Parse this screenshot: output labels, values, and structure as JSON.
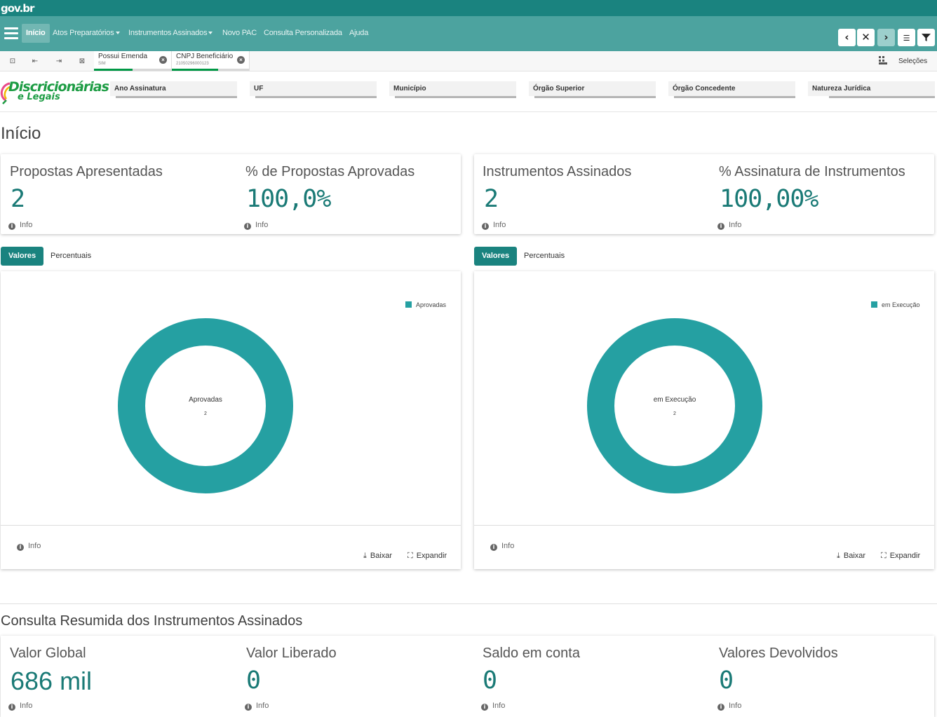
{
  "header": {
    "gov_logo": "gov.br"
  },
  "nav": {
    "items": [
      {
        "label": "Início",
        "active": true
      },
      {
        "label": "Atos Preparatórios",
        "dropdown": true
      },
      {
        "label": "Instrumentos Assinados",
        "dropdown": true
      },
      {
        "label": "Novo PAC"
      },
      {
        "label": "Consulta Personalizada"
      },
      {
        "label": "Ajuda"
      }
    ],
    "buttons": [
      "chevron-left-icon",
      "close-icon",
      "chevron-right-icon",
      "toggle-icon",
      "filter-icon"
    ]
  },
  "selections": {
    "chips": [
      {
        "title": "Possui Emenda",
        "value": "SIM"
      },
      {
        "title": "CNPJ Beneficiário",
        "value": "21050296000123"
      }
    ],
    "label": "Seleções"
  },
  "brand": {
    "line1": "Discricionárias",
    "line2": "e Legais"
  },
  "filters": [
    "Ano Assinatura",
    "UF",
    "Município",
    "Órgão Superior",
    "Órgão Concedente",
    "Natureza Jurídica"
  ],
  "page_title": "Início",
  "kpis_left": [
    {
      "label": "Propostas Apresentadas",
      "value": "2",
      "info": "Info"
    },
    {
      "label": "% de Propostas Aprovadas",
      "value": "100,0%",
      "info": "Info"
    }
  ],
  "kpis_right": [
    {
      "label": "Instrumentos Assinados",
      "value": "2",
      "info": "Info"
    },
    {
      "label": "% Assinatura de Instrumentos",
      "value": "100,00%",
      "info": "Info"
    }
  ],
  "tabs": {
    "values": "Valores",
    "percent": "Percentuais"
  },
  "charts": {
    "left": {
      "legend": "Aprovadas",
      "center_label": "Aprovadas",
      "center_value": "2",
      "color": "#25a0a2"
    },
    "right": {
      "legend": "em Execução",
      "center_label": "em Execução",
      "center_value": "2",
      "color": "#25a0a2"
    },
    "info": "Info",
    "download": "Baixar",
    "expand": "Expandir"
  },
  "chart_data": [
    {
      "type": "pie",
      "categories": [
        "Aprovadas"
      ],
      "values": [
        2
      ]
    },
    {
      "type": "pie",
      "categories": [
        "em Execução"
      ],
      "values": [
        2
      ]
    }
  ],
  "summary": {
    "title": "Consulta Resumida dos Instrumentos Assinados",
    "items": [
      {
        "label": "Valor Global",
        "value": "686 mil",
        "info": "Info"
      },
      {
        "label": "Valor Liberado",
        "value": "0",
        "info": "Info"
      },
      {
        "label": "Saldo em conta",
        "value": "0",
        "info": "Info"
      },
      {
        "label": "Valores Devolvidos",
        "value": "0",
        "info": "Info"
      }
    ]
  }
}
